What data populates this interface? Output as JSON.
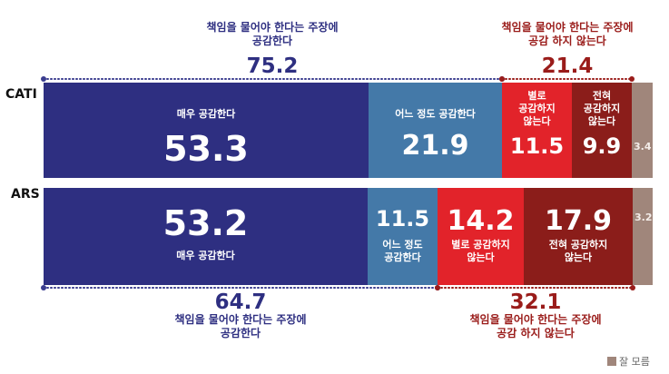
{
  "colors": {
    "agree_strong": "#2e2f81",
    "agree_some": "#4479a8",
    "disagree_some": "#e2232a",
    "disagree_strong": "#8b1d1a",
    "dont_know": "#a0867b",
    "agree_text": "#2e2f81",
    "disagree_text": "#9a1c1a",
    "dots": "#3b3d8f"
  },
  "rows": [
    {
      "label": "CATI",
      "segments": [
        {
          "key": "agree_strong",
          "value": 53.3,
          "value_text": "53.3",
          "label": "매우 공감한다",
          "label_pos": "above"
        },
        {
          "key": "agree_some",
          "value": 21.9,
          "value_text": "21.9",
          "label": "어느 정도 공감한다",
          "label_pos": "above"
        },
        {
          "key": "disagree_some",
          "value": 11.5,
          "value_text": "11.5",
          "label": "별로\n공감하지\n않는다",
          "label_pos": "above"
        },
        {
          "key": "disagree_strong",
          "value": 9.9,
          "value_text": "9.9",
          "label": "전혀\n공감하지\n않는다",
          "label_pos": "above"
        },
        {
          "key": "dont_know",
          "value": 3.4,
          "value_text": "3.4",
          "label": "",
          "label_pos": "none"
        }
      ],
      "agree_total": {
        "caption_line1": "책임을 물어야 한다는 주장에",
        "caption_line2": "공감한다",
        "value": "75.2"
      },
      "disagree_total": {
        "caption_line1": "책임을 물어야 한다는 주장에",
        "caption_line2": "공감 하지 않는다",
        "value": "21.4"
      }
    },
    {
      "label": "ARS",
      "segments": [
        {
          "key": "agree_strong",
          "value": 53.2,
          "value_text": "53.2",
          "label": "매우 공감한다",
          "label_pos": "below"
        },
        {
          "key": "agree_some",
          "value": 11.5,
          "value_text": "11.5",
          "label": "어느 정도\n공감한다",
          "label_pos": "below"
        },
        {
          "key": "disagree_some",
          "value": 14.2,
          "value_text": "14.2",
          "label": "별로 공감하지\n않는다",
          "label_pos": "below"
        },
        {
          "key": "disagree_strong",
          "value": 17.9,
          "value_text": "17.9",
          "label": "전혀 공감하지\n않는다",
          "label_pos": "below"
        },
        {
          "key": "dont_know",
          "value": 3.2,
          "value_text": "3.2",
          "label": "",
          "label_pos": "none"
        }
      ],
      "agree_total": {
        "caption_line1": "책임을 물어야 한다는 주장에",
        "caption_line2": "공감한다",
        "value": "64.7"
      },
      "disagree_total": {
        "caption_line1": "책임을 물어야 한다는 주장에",
        "caption_line2": "공감 하지 않는다",
        "value": "32.1"
      }
    }
  ],
  "legend": {
    "label": "잘 모름"
  },
  "chart_data": {
    "type": "bar",
    "orientation": "horizontal",
    "stacked": true,
    "categories": [
      "CATI",
      "ARS"
    ],
    "series": [
      {
        "name": "매우 공감한다",
        "values": [
          53.3,
          53.2
        ]
      },
      {
        "name": "어느 정도 공감한다",
        "values": [
          21.9,
          11.5
        ]
      },
      {
        "name": "별로 공감하지 않는다",
        "values": [
          11.5,
          14.2
        ]
      },
      {
        "name": "전혀 공감하지 않는다",
        "values": [
          9.9,
          17.9
        ]
      },
      {
        "name": "잘 모름",
        "values": [
          3.4,
          3.2
        ]
      }
    ],
    "totals": {
      "공감한다": [
        75.2,
        64.7
      ],
      "공감 하지 않는다": [
        21.4,
        32.1
      ]
    },
    "xlim": [
      0,
      100
    ],
    "grid": false,
    "legend": "bottom-right"
  }
}
